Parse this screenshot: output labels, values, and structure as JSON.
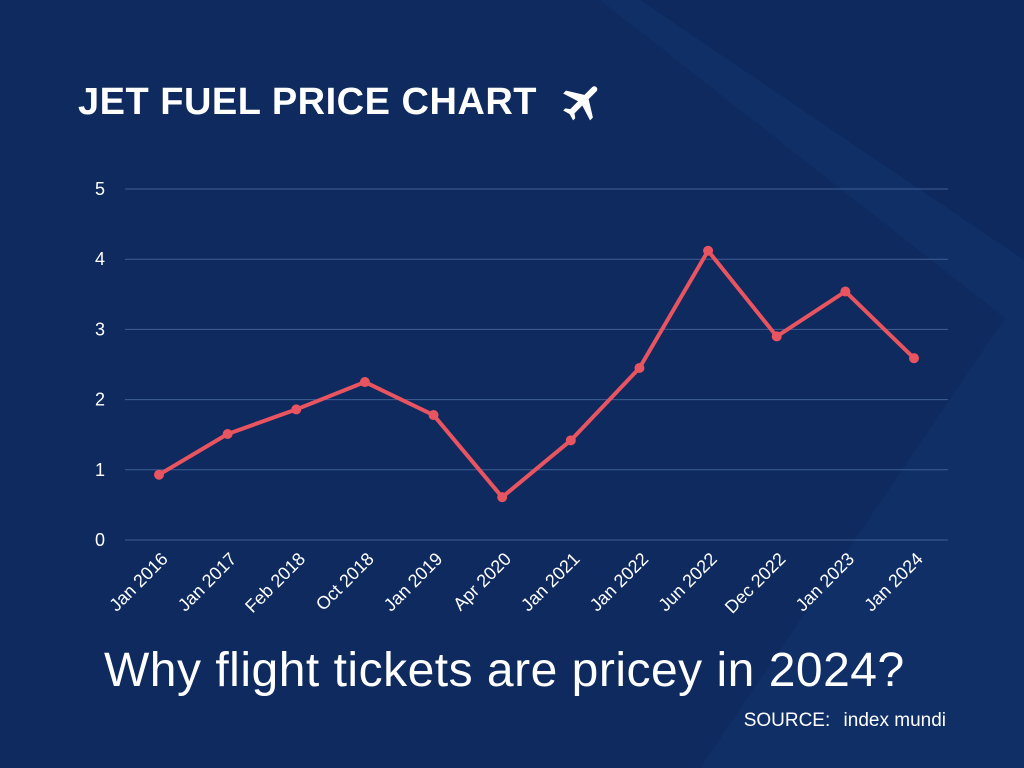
{
  "colors": {
    "background": "#0e2a5e",
    "line": "#e8545f",
    "grid": "#3f5f96",
    "text": "#ffffff"
  },
  "header": {
    "title": "JET FUEL PRICE CHART",
    "icon": "airplane-icon"
  },
  "chart_data": {
    "type": "line",
    "title": "JET FUEL PRICE CHART",
    "xlabel": "",
    "ylabel": "",
    "ylim": [
      0,
      5
    ],
    "yticks": [
      "0",
      "1",
      "2",
      "3",
      "4",
      "5"
    ],
    "grid": true,
    "categories": [
      "Jan 2016",
      "Jan 2017",
      "Feb 2018",
      "Oct 2018",
      "Jan 2019",
      "Apr 2020",
      "Jan 2021",
      "Jan 2022",
      "Jun 2022",
      "Dec 2022",
      "Jan 2023",
      "Jan 2024"
    ],
    "series": [
      {
        "name": "Jet fuel price",
        "values": [
          0.93,
          1.51,
          1.86,
          2.25,
          1.78,
          0.61,
          1.42,
          2.45,
          4.12,
          2.9,
          3.54,
          2.59
        ]
      }
    ]
  },
  "footer": {
    "subtitle": "Why flight tickets are pricey in 2024?",
    "source_label": "SOURCE:",
    "source_value": "index mundi"
  }
}
